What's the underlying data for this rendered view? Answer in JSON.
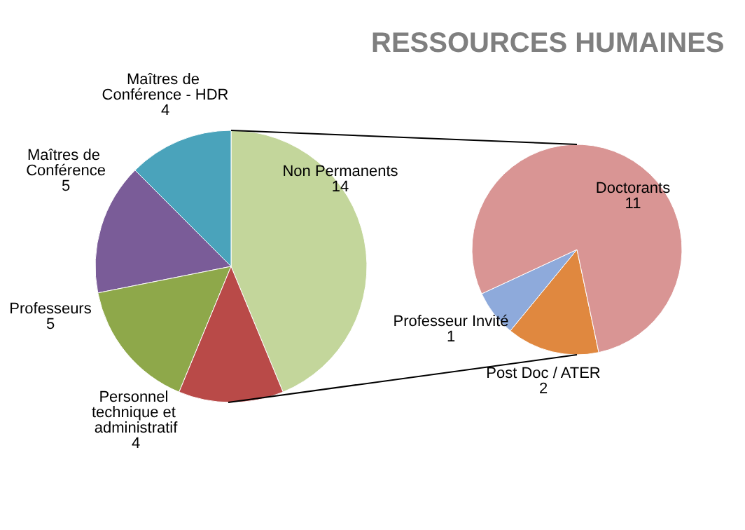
{
  "chart_data": [
    {
      "type": "pie",
      "categories": [
        "Non Permanents",
        "Maîtres de Conférence - HDR",
        "Maîtres de Conférence",
        "Professeurs",
        "Personnel technique et administratif"
      ],
      "values": [
        14,
        4,
        5,
        5,
        4
      ],
      "colors": [
        "#c3d69b",
        "#4aa3bb",
        "#7a5c98",
        "#8ea84a",
        "#b94a48"
      ],
      "data_labels": true,
      "legend": false
    },
    {
      "type": "pie",
      "title": "RESSOURCES HUMAINES",
      "categories": [
        "Post Doc / ATER",
        "Professeur Invité",
        "Doctorants"
      ],
      "values": [
        2,
        1,
        11
      ],
      "colors": [
        "#e0883f",
        "#8eaadb",
        "#d99594"
      ],
      "data_labels": true,
      "legend": false
    }
  ]
}
